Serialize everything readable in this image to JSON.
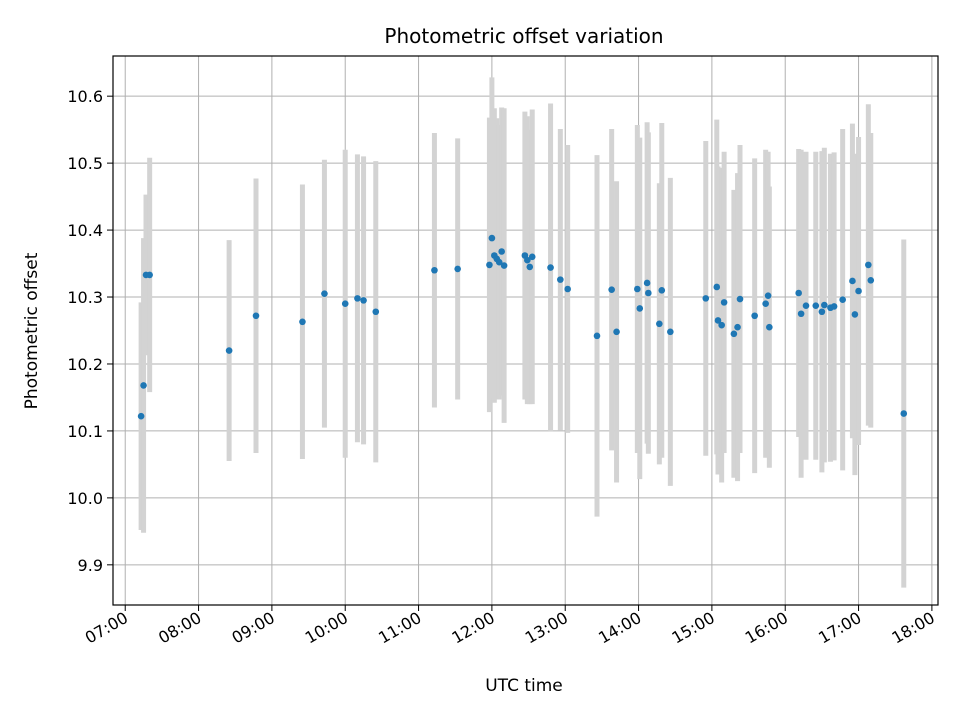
{
  "chart_data": {
    "type": "scatter",
    "title": "Photometric offset variation",
    "xlabel": "UTC time",
    "ylabel": "Photometric offset",
    "x_unit": "UTC time (HH:MM)",
    "xlim": [
      "06:50",
      "18:05"
    ],
    "ylim": [
      9.84,
      10.66
    ],
    "x_ticks": [
      "07:00",
      "08:00",
      "09:00",
      "10:00",
      "11:00",
      "12:00",
      "13:00",
      "14:00",
      "15:00",
      "16:00",
      "17:00",
      "18:00"
    ],
    "y_ticks": [
      9.9,
      10.0,
      10.1,
      10.2,
      10.3,
      10.4,
      10.5,
      10.6
    ],
    "grid": true,
    "legend": "none",
    "colors": {
      "points": "#1f77b4",
      "error_bars": "#d3d3d3",
      "grid": "#b0b0b0"
    },
    "series": [
      {
        "x": [
          "07:13",
          "07:15",
          "07:17",
          "07:20",
          "08:25",
          "08:47",
          "09:25",
          "09:43",
          "10:00",
          "10:10",
          "10:15",
          "10:25",
          "11:13",
          "11:32",
          "11:58",
          "12:00",
          "12:02",
          "12:04",
          "12:06",
          "12:08",
          "12:10",
          "12:27",
          "12:29",
          "12:31",
          "12:33",
          "12:48",
          "12:56",
          "13:02",
          "13:26",
          "13:38",
          "13:42",
          "13:59",
          "14:01",
          "14:07",
          "14:08",
          "14:17",
          "14:19",
          "14:26",
          "14:55",
          "15:04",
          "15:05",
          "15:08",
          "15:10",
          "15:18",
          "15:21",
          "15:23",
          "15:35",
          "15:44",
          "15:46",
          "15:47",
          "16:11",
          "16:13",
          "16:17",
          "16:25",
          "16:30",
          "16:32",
          "16:37",
          "16:40",
          "16:47",
          "16:55",
          "16:57",
          "17:00",
          "17:08",
          "17:10",
          "17:37"
        ],
        "y": [
          10.122,
          10.168,
          10.333,
          10.333,
          10.22,
          10.272,
          10.263,
          10.305,
          10.29,
          10.298,
          10.295,
          10.278,
          10.34,
          10.342,
          10.348,
          10.388,
          10.362,
          10.357,
          10.352,
          10.368,
          10.347,
          10.362,
          10.355,
          10.345,
          10.36,
          10.344,
          10.326,
          10.312,
          10.242,
          10.311,
          10.248,
          10.312,
          10.283,
          10.321,
          10.306,
          10.26,
          10.31,
          10.248,
          10.298,
          10.315,
          10.265,
          10.258,
          10.292,
          10.245,
          10.255,
          10.297,
          10.272,
          10.29,
          10.302,
          10.255,
          10.306,
          10.275,
          10.287,
          10.287,
          10.278,
          10.288,
          10.284,
          10.286,
          10.296,
          10.324,
          10.274,
          10.309,
          10.348,
          10.325,
          10.126
        ],
        "err": [
          0.17,
          0.22,
          0.12,
          0.175,
          0.165,
          0.205,
          0.205,
          0.2,
          0.23,
          0.215,
          0.215,
          0.225,
          0.205,
          0.195,
          0.22,
          0.24,
          0.22,
          0.21,
          0.205,
          0.215,
          0.235,
          0.215,
          0.215,
          0.205,
          0.22,
          0.245,
          0.225,
          0.215,
          0.27,
          0.24,
          0.225,
          0.245,
          0.255,
          0.24,
          0.24,
          0.21,
          0.25,
          0.23,
          0.235,
          0.25,
          0.23,
          0.235,
          0.225,
          0.215,
          0.23,
          0.23,
          0.235,
          0.23,
          0.215,
          0.21,
          0.215,
          0.245,
          0.23,
          0.23,
          0.24,
          0.235,
          0.23,
          0.23,
          0.255,
          0.235,
          0.24,
          0.23,
          0.24,
          0.22,
          0.26
        ]
      }
    ]
  }
}
